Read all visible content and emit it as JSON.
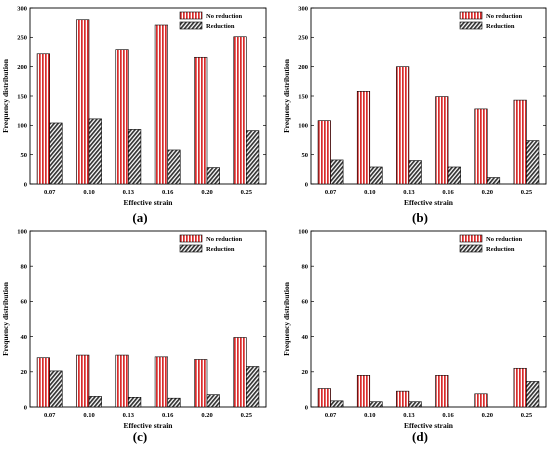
{
  "colors": {
    "no_reduction_stripe": "#d92b2b",
    "reduction_stripe": "#333333",
    "frame": "#000000"
  },
  "chart_data": [
    {
      "type": "bar",
      "panel_label": "(a)",
      "categories": [
        "0.07",
        "0.10",
        "0.13",
        "0.16",
        "0.20",
        "0.25"
      ],
      "series": [
        {
          "name": "No reduction",
          "values": [
            222,
            280,
            229,
            271,
            216,
            251
          ]
        },
        {
          "name": "Reduction",
          "values": [
            104,
            111,
            93,
            58,
            28,
            91
          ]
        }
      ],
      "xlabel": "Effective strain",
      "ylabel": "Frequency distribution",
      "ylim": [
        0,
        300
      ],
      "yticks": [
        "0",
        "50",
        "100",
        "150",
        "200",
        "250",
        "300"
      ],
      "legend_position": "top-right"
    },
    {
      "type": "bar",
      "panel_label": "(b)",
      "categories": [
        "0.07",
        "0.10",
        "0.13",
        "0.16",
        "0.20",
        "0.25"
      ],
      "series": [
        {
          "name": "No reduction",
          "values": [
            108,
            158,
            200,
            149,
            128,
            143
          ]
        },
        {
          "name": "Reduction",
          "values": [
            41,
            29,
            40,
            29,
            11,
            74
          ]
        }
      ],
      "xlabel": "Effective strain",
      "ylabel": "Frequency distribution",
      "ylim": [
        0,
        300
      ],
      "yticks": [
        "0",
        "50",
        "100",
        "150",
        "200",
        "250",
        "300"
      ],
      "legend_position": "top-right"
    },
    {
      "type": "bar",
      "panel_label": "(c)",
      "categories": [
        "0.07",
        "0.10",
        "0.13",
        "0.16",
        "0.20",
        "0.25"
      ],
      "series": [
        {
          "name": "No reduction",
          "values": [
            28,
            29.5,
            29.5,
            28.5,
            27,
            39.5
          ]
        },
        {
          "name": "Reduction",
          "values": [
            20.5,
            6,
            5.5,
            5,
            7,
            23
          ]
        }
      ],
      "xlabel": "Effective strain",
      "ylabel": "Frequency distribution",
      "ylim": [
        0,
        100
      ],
      "yticks": [
        "0",
        "20",
        "40",
        "60",
        "80",
        "100"
      ],
      "legend_position": "top-right"
    },
    {
      "type": "bar",
      "panel_label": "(d)",
      "categories": [
        "0.07",
        "0.10",
        "0.13",
        "0.16",
        "0.20",
        "0.25"
      ],
      "series": [
        {
          "name": "No reduction",
          "values": [
            10.5,
            18,
            9,
            18,
            7.5,
            22
          ]
        },
        {
          "name": "Reduction",
          "values": [
            3.5,
            3,
            3,
            0,
            0,
            14.5
          ]
        }
      ],
      "xlabel": "Effective strain",
      "ylabel": "Frequency distribution",
      "ylim": [
        0,
        100
      ],
      "yticks": [
        "0",
        "20",
        "40",
        "60",
        "80",
        "100"
      ],
      "legend_position": "top-right"
    }
  ]
}
